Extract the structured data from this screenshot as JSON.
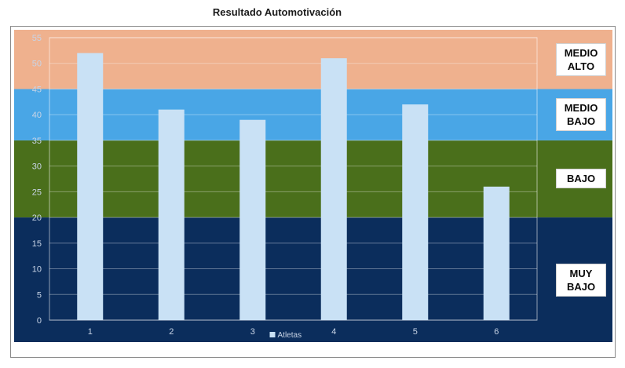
{
  "chart_data": {
    "type": "bar",
    "title": "Resultado Automotivación",
    "categories": [
      "1",
      "2",
      "3",
      "4",
      "5",
      "6"
    ],
    "series": [
      {
        "name": "Atletas",
        "values": [
          52,
          41,
          39,
          51,
          42,
          26
        ],
        "color": "#c9e1f5"
      }
    ],
    "ylim": [
      0,
      55
    ],
    "yticks": [
      "0",
      "5",
      "10",
      "15",
      "20",
      "25",
      "30",
      "35",
      "40",
      "45",
      "50",
      "55"
    ],
    "grid": true,
    "legend_position": "bottom",
    "bands": [
      {
        "label": "MUY\nBAJO",
        "from": 0,
        "to": 20,
        "color": "#0b2d5c"
      },
      {
        "label": "BAJO",
        "from": 20,
        "to": 35,
        "color": "#4a6f1b"
      },
      {
        "label": "MEDIO\nBAJO",
        "from": 35,
        "to": 45,
        "color": "#49a6e6"
      },
      {
        "label": "MEDIO\nALTO",
        "from": 45,
        "to": 55,
        "color": "#efb18e"
      }
    ]
  }
}
